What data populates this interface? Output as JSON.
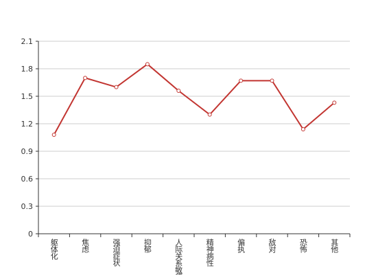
{
  "chart_data": {
    "type": "line",
    "categories": [
      "躯体化",
      "焦虑",
      "强迫症状",
      "抑郁",
      "人际关系敏感",
      "精神病性",
      "偏执",
      "敌对",
      "恐怖",
      "其他"
    ],
    "series": [
      {
        "color": "#c23531",
        "values": [
          1.08,
          1.7,
          1.6,
          1.85,
          1.56,
          1.3,
          1.67,
          1.67,
          1.14,
          1.43
        ]
      }
    ],
    "ylim": [
      0,
      2.1
    ],
    "yticks": [
      0,
      0.3,
      0.6,
      0.9,
      1.2,
      1.5,
      1.8,
      2.1
    ],
    "grid": true
  }
}
